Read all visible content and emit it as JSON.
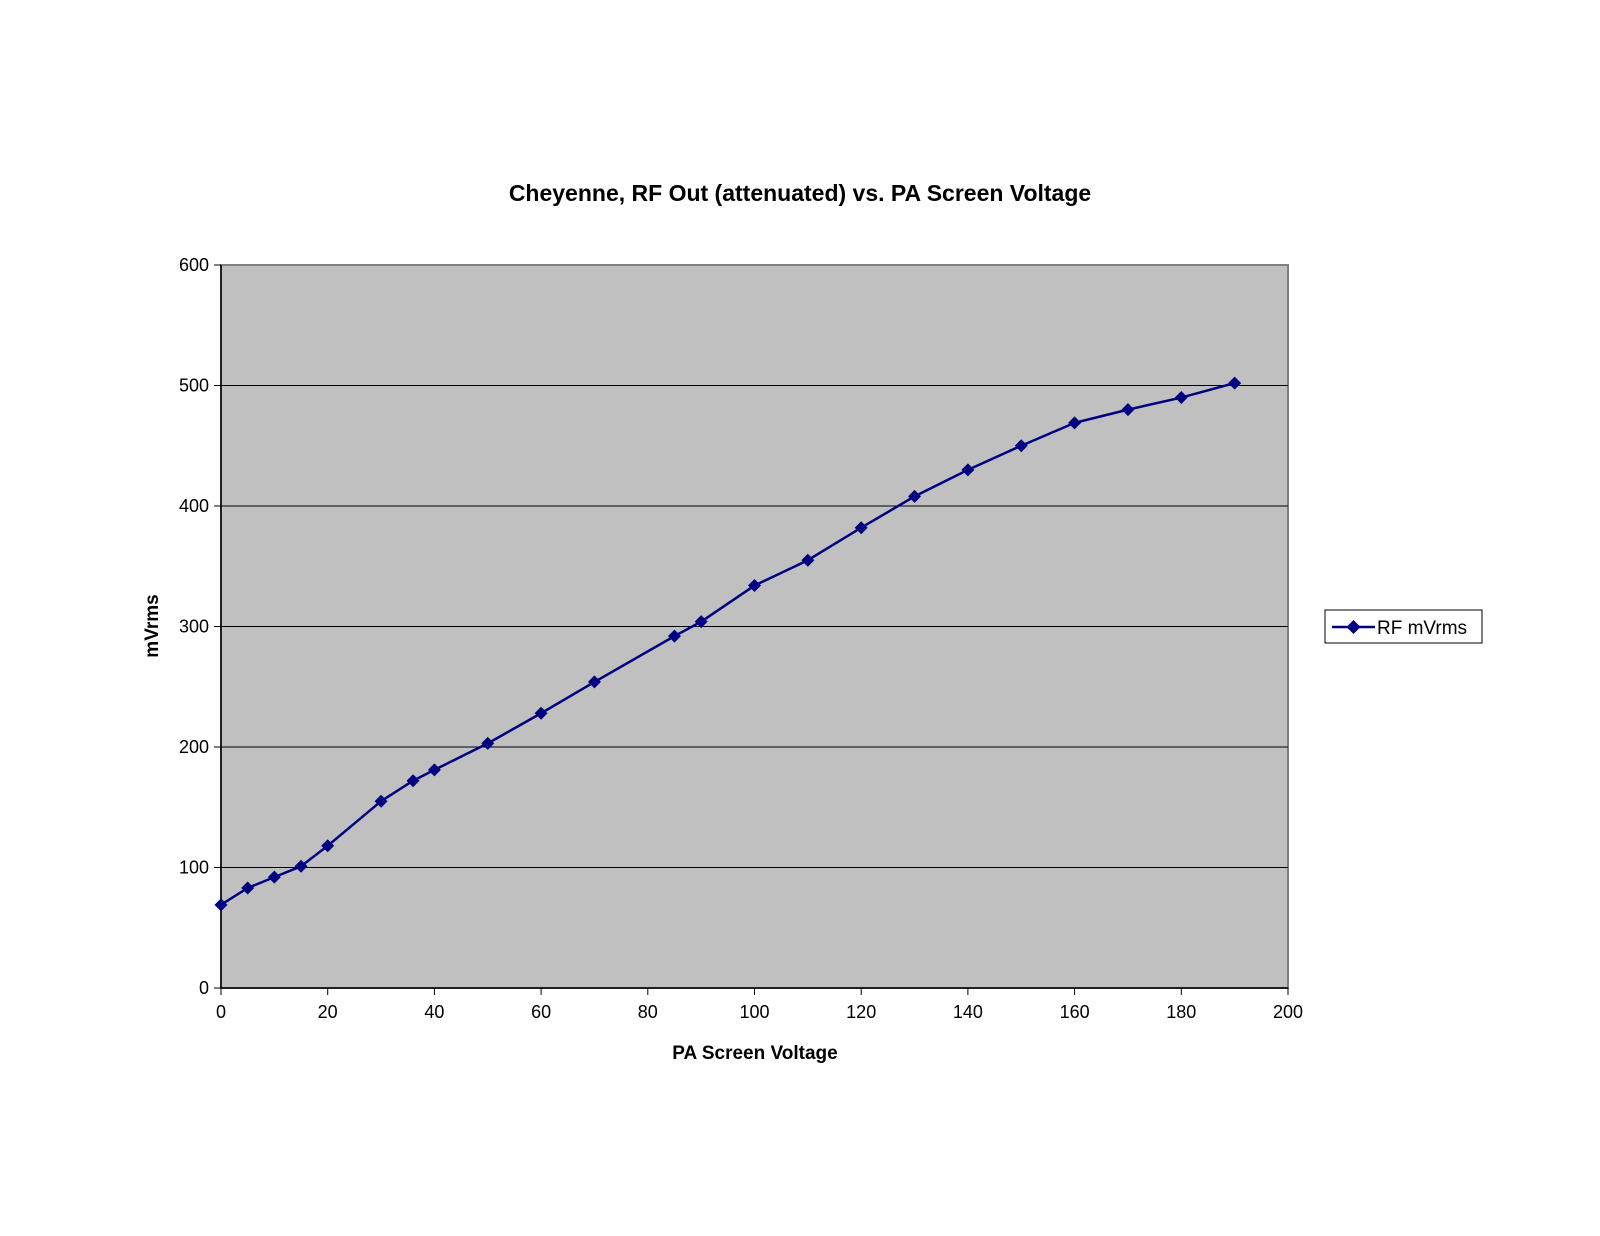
{
  "chart_data": {
    "type": "line",
    "title": "Cheyenne, RF Out (attenuated) vs. PA Screen Voltage",
    "xlabel": "PA Screen Voltage",
    "ylabel": "mVrms",
    "xlim": [
      0,
      200
    ],
    "ylim": [
      0,
      600
    ],
    "x_ticks": [
      "0",
      "20",
      "40",
      "60",
      "80",
      "100",
      "120",
      "140",
      "160",
      "180",
      "200"
    ],
    "y_ticks": [
      "0",
      "100",
      "200",
      "300",
      "400",
      "500",
      "600"
    ],
    "grid": "horizontal major gridlines",
    "legend_position": "right",
    "plot_background": "#c0c0c0",
    "series": [
      {
        "name": "RF mVrms",
        "color": "#000080",
        "marker": "diamond",
        "x": [
          0,
          5,
          10,
          15,
          20,
          30,
          36,
          40,
          50,
          60,
          70,
          85,
          90,
          100,
          110,
          120,
          130,
          140,
          150,
          160,
          170,
          180,
          190
        ],
        "y": [
          69,
          83,
          92,
          101,
          118,
          155,
          172,
          181,
          203,
          228,
          254,
          292,
          304,
          334,
          355,
          382,
          408,
          430,
          450,
          469,
          480,
          490,
          502
        ]
      }
    ]
  }
}
